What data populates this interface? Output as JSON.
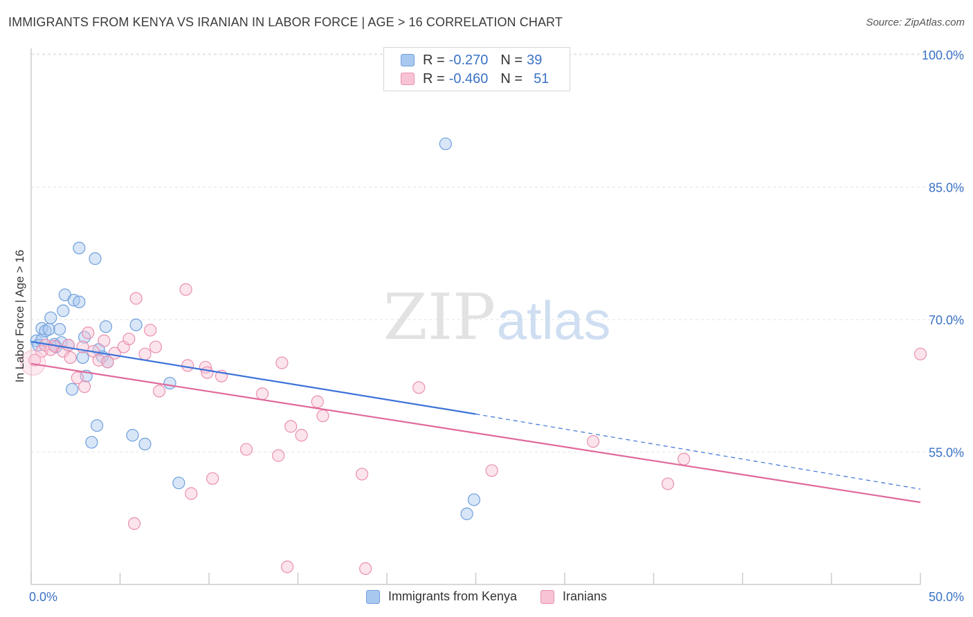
{
  "header": {
    "title": "IMMIGRANTS FROM KENYA VS IRANIAN IN LABOR FORCE | AGE > 16 CORRELATION CHART",
    "source": "Source: ZipAtlas.com"
  },
  "watermark": {
    "part1": "ZIP",
    "part2": "atlas"
  },
  "legend_top": {
    "rows": [
      {
        "r_label": "R =",
        "r_value": "-0.270",
        "n_label": "N =",
        "n_value": "39",
        "color": "#a9c8ef",
        "border": "#6f9fdc"
      },
      {
        "r_label": "R =",
        "r_value": "-0.460",
        "n_label": "N =",
        "n_value": "51",
        "color": "#f8c4d5",
        "border": "#e98fae"
      }
    ]
  },
  "legend_bottom": {
    "items": [
      {
        "label": "Immigrants from Kenya",
        "color": "#a9c8ef",
        "border": "#6f9fdc"
      },
      {
        "label": "Iranians",
        "color": "#f8c4d5",
        "border": "#e98fae"
      }
    ]
  },
  "chart_data": {
    "type": "scatter",
    "title": "IMMIGRANTS FROM KENYA VS IRANIAN IN LABOR FORCE | AGE > 16 CORRELATION CHART",
    "xlabel": "",
    "ylabel": "In Labor Force | Age > 16",
    "xlim": [
      0,
      50
    ],
    "ylim": [
      40,
      100
    ],
    "x_tick_labels": [
      "0.0%",
      "50.0%"
    ],
    "y_ticks": [
      55,
      70,
      85,
      100
    ],
    "y_tick_labels": [
      "55.0%",
      "70.0%",
      "85.0%",
      "100.0%"
    ],
    "grid": true,
    "legend_position": "top-center",
    "colors": {
      "kenya": "#3b72d8",
      "iranians": "#e0689a",
      "tick_label": "#3b72c5"
    },
    "series": [
      {
        "name": "Immigrants from Kenya",
        "color": "#6f9fdc",
        "trend": {
          "x": [
            0,
            25
          ],
          "y": [
            67.5,
            59.3
          ],
          "dashed_to": [
            50,
            50.8
          ]
        },
        "points": [
          [
            0.3,
            67.6
          ],
          [
            0.4,
            67.1
          ],
          [
            0.6,
            67.7
          ],
          [
            0.6,
            69.0
          ],
          [
            0.8,
            68.7
          ],
          [
            1.0,
            68.9
          ],
          [
            1.1,
            70.2
          ],
          [
            1.3,
            67.2
          ],
          [
            1.4,
            66.9
          ],
          [
            1.6,
            68.9
          ],
          [
            1.7,
            67.4
          ],
          [
            1.8,
            71.0
          ],
          [
            1.9,
            72.8
          ],
          [
            2.1,
            67.1
          ],
          [
            2.3,
            62.1
          ],
          [
            2.4,
            72.2
          ],
          [
            2.7,
            72.0
          ],
          [
            2.7,
            78.1
          ],
          [
            2.9,
            65.7
          ],
          [
            3.0,
            68.0
          ],
          [
            3.1,
            63.6
          ],
          [
            3.4,
            56.1
          ],
          [
            3.6,
            76.9
          ],
          [
            3.7,
            58.0
          ],
          [
            3.8,
            66.6
          ],
          [
            4.0,
            65.8
          ],
          [
            4.2,
            69.2
          ],
          [
            4.3,
            65.2
          ],
          [
            5.7,
            56.9
          ],
          [
            5.9,
            69.4
          ],
          [
            6.4,
            55.9
          ],
          [
            7.8,
            62.8
          ],
          [
            8.3,
            51.5
          ],
          [
            23.3,
            89.9
          ],
          [
            24.5,
            48.0
          ],
          [
            24.9,
            49.6
          ]
        ]
      },
      {
        "name": "Iranians",
        "color": "#e98fae",
        "trend": {
          "x": [
            0,
            50
          ],
          "y": [
            65.0,
            49.3
          ]
        },
        "points": [
          [
            0.2,
            65.4
          ],
          [
            0.6,
            66.4
          ],
          [
            0.8,
            67.1
          ],
          [
            1.1,
            66.6
          ],
          [
            1.3,
            67.0
          ],
          [
            1.8,
            66.4
          ],
          [
            2.1,
            67.1
          ],
          [
            2.2,
            65.7
          ],
          [
            2.6,
            63.4
          ],
          [
            2.9,
            66.9
          ],
          [
            3.0,
            62.4
          ],
          [
            3.2,
            68.5
          ],
          [
            3.5,
            66.4
          ],
          [
            3.8,
            65.4
          ],
          [
            4.1,
            67.6
          ],
          [
            4.3,
            65.2
          ],
          [
            4.7,
            66.2
          ],
          [
            5.2,
            66.9
          ],
          [
            5.5,
            67.8
          ],
          [
            5.9,
            72.4
          ],
          [
            6.4,
            66.1
          ],
          [
            6.7,
            68.8
          ],
          [
            7.0,
            66.9
          ],
          [
            7.2,
            61.9
          ],
          [
            8.7,
            73.4
          ],
          [
            8.8,
            64.8
          ],
          [
            9.0,
            50.3
          ],
          [
            9.8,
            64.6
          ],
          [
            9.9,
            64.0
          ],
          [
            10.2,
            52.0
          ],
          [
            10.7,
            63.6
          ],
          [
            12.1,
            55.3
          ],
          [
            13.0,
            61.6
          ],
          [
            13.9,
            54.6
          ],
          [
            14.1,
            65.1
          ],
          [
            14.4,
            42.0
          ],
          [
            14.6,
            57.9
          ],
          [
            15.2,
            56.9
          ],
          [
            16.1,
            60.7
          ],
          [
            16.4,
            59.1
          ],
          [
            18.6,
            52.5
          ],
          [
            18.8,
            41.8
          ],
          [
            21.8,
            62.3
          ],
          [
            25.9,
            52.9
          ],
          [
            31.6,
            56.2
          ],
          [
            35.8,
            51.4
          ],
          [
            36.7,
            54.2
          ],
          [
            50.0,
            66.1
          ],
          [
            5.8,
            46.9
          ]
        ]
      }
    ]
  }
}
